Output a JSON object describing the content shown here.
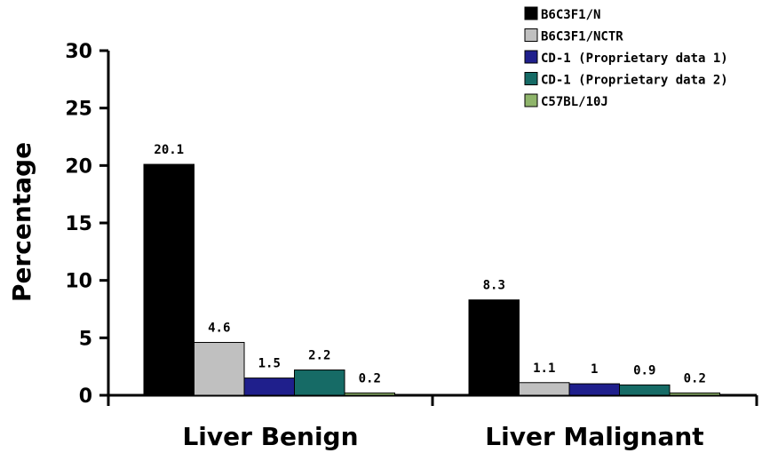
{
  "chart_data": {
    "type": "bar",
    "categories": [
      "Liver Benign",
      "Liver Malignant"
    ],
    "series": [
      {
        "name": "B6C3F1/N",
        "color": "#000000",
        "values": [
          20.1,
          8.3
        ],
        "labels": [
          "20.1",
          "8.3"
        ]
      },
      {
        "name": "B6C3F1/NCTR",
        "color": "#c0c0c0",
        "values": [
          4.6,
          1.1
        ],
        "labels": [
          "4.6",
          "1.1"
        ]
      },
      {
        "name": "CD-1 (Proprietary data 1)",
        "color": "#1f1f8c",
        "values": [
          1.5,
          1.0
        ],
        "labels": [
          "1.5",
          "1"
        ]
      },
      {
        "name": "CD-1 (Proprietary data 2)",
        "color": "#166b66",
        "values": [
          2.2,
          0.9
        ],
        "labels": [
          "2.2",
          "0.9"
        ]
      },
      {
        "name": "C57BL/10J",
        "color": "#8fb56b",
        "values": [
          0.2,
          0.2
        ],
        "labels": [
          "0.2",
          "0.2"
        ]
      }
    ],
    "title": "",
    "xlabel": "",
    "ylabel": "Percentage",
    "ylim": [
      0,
      30
    ],
    "yticks": [
      "0",
      "5",
      "10",
      "15",
      "20",
      "25",
      "30"
    ],
    "grid": false,
    "legend_position": "top-right"
  }
}
